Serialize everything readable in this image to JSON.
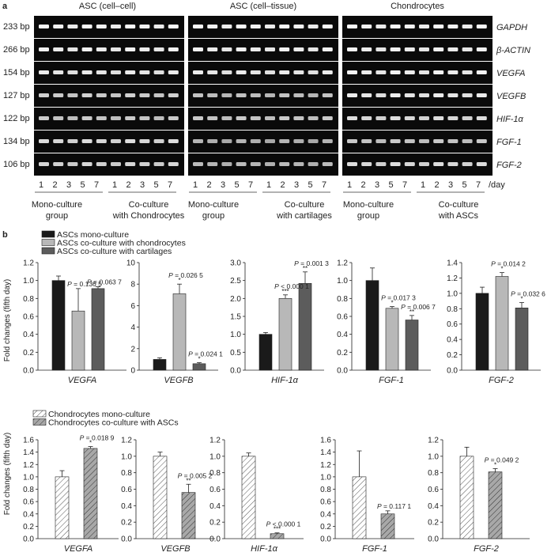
{
  "panel_a": {
    "label": "a",
    "block_titles": [
      "ASC (cell–cell)",
      "ASC (cell–tissue)",
      "Chondrocytes"
    ],
    "bands": [
      {
        "size": "233 bp",
        "gene": "GAPDH",
        "rowIntensity": [
          0.95,
          0.95,
          0.95
        ]
      },
      {
        "size": "266 bp",
        "gene": "β-ACTIN",
        "rowIntensity": [
          0.9,
          0.9,
          0.9
        ]
      },
      {
        "size": "154 bp",
        "gene": "VEGFA",
        "rowIntensity": [
          0.85,
          0.85,
          0.9
        ]
      },
      {
        "size": "127 bp",
        "gene": "VEGFB",
        "rowIntensity": [
          0.65,
          0.55,
          0.85
        ]
      },
      {
        "size": "122 bp",
        "gene": "HIF-1α",
        "rowIntensity": [
          0.6,
          0.6,
          0.75
        ]
      },
      {
        "size": "134 bp",
        "gene": "FGF-1",
        "rowIntensity": [
          0.75,
          0.45,
          0.6
        ]
      },
      {
        "size": "106 bp",
        "gene": "FGF-2",
        "rowIntensity": [
          0.7,
          0.5,
          0.75
        ]
      }
    ],
    "lanes": [
      "1",
      "2",
      "3",
      "5",
      "7"
    ],
    "day_label": "/day",
    "groups": [
      [
        "Mono-culture",
        "group"
      ],
      [
        "Co-culture",
        "with Chondrocytes"
      ],
      [
        "Mono-culture",
        "group"
      ],
      [
        "Co-culture",
        "with cartilages"
      ],
      [
        "Mono-culture",
        "group"
      ],
      [
        "Co-culture",
        "with ASCs"
      ]
    ]
  },
  "panel_b": {
    "label": "b",
    "legend": [
      {
        "label": "ASCs mono-culture",
        "color": "#1a1a1a"
      },
      {
        "label": "ASCs co-culture with chondrocytes",
        "color": "#b8b8b8"
      },
      {
        "label": "ASCs co-culture with cartilages",
        "color": "#5c5c5c"
      }
    ],
    "ylabel": "Fold changes (fifth day)"
  },
  "panel_c": {
    "legend": [
      {
        "label": "Chondrocytes mono-culture",
        "fill": "hatch-white"
      },
      {
        "label": "Chondrocytes co-culture with ASCs",
        "fill": "hatch-grey"
      }
    ],
    "ylabel": "Fold changes (fifth day)"
  },
  "chart_data": [
    {
      "type": "bar",
      "xlabel": "VEGFA",
      "ylim": [
        0,
        1.2
      ],
      "ticks": [
        "0.0",
        "0.2",
        "0.4",
        "0.6",
        "0.8",
        "1.0",
        "1.2"
      ],
      "values": [
        1.0,
        0.66,
        0.91
      ],
      "errors": [
        0.05,
        0.25,
        0.02
      ],
      "annotations": [
        {
          "bar": 1,
          "text": "P = 0.136 5",
          "star": ""
        },
        {
          "bar": 2,
          "text": "P = 0.063 7",
          "star": ""
        }
      ]
    },
    {
      "type": "bar",
      "xlabel": "VEGFB",
      "ylim": [
        0,
        10
      ],
      "ticks": [
        "0",
        "2",
        "4",
        "6",
        "8",
        "10"
      ],
      "values": [
        1.0,
        7.1,
        0.6
      ],
      "errors": [
        0.15,
        0.9,
        0.1
      ],
      "annotations": [
        {
          "bar": 1,
          "text": "P = 0.026 5",
          "star": "*"
        },
        {
          "bar": 2,
          "text": "P = 0.024 1",
          "star": "*"
        }
      ]
    },
    {
      "type": "bar",
      "xlabel": "HIF-1α",
      "ylim": [
        0,
        3.0
      ],
      "ticks": [
        "0.0",
        "0.5",
        "1.0",
        "1.5",
        "2.0",
        "2.5",
        "3.0"
      ],
      "values": [
        1.0,
        2.0,
        2.42
      ],
      "errors": [
        0.05,
        0.1,
        0.32
      ],
      "annotations": [
        {
          "bar": 1,
          "text": "P < 0.000 1",
          "star": "***"
        },
        {
          "bar": 2,
          "text": "P = 0.001 3",
          "star": "**"
        }
      ]
    },
    {
      "type": "bar",
      "xlabel": "FGF-1",
      "ylim": [
        0,
        1.2
      ],
      "ticks": [
        "0.0",
        "0.2",
        "0.4",
        "0.6",
        "0.8",
        "1.0",
        "1.2"
      ],
      "values": [
        1.0,
        0.69,
        0.56
      ],
      "errors": [
        0.14,
        0.02,
        0.05
      ],
      "annotations": [
        {
          "bar": 1,
          "text": "P = 0.017 3",
          "star": "*"
        },
        {
          "bar": 2,
          "text": "P = 0.006 7",
          "star": "**"
        }
      ]
    },
    {
      "type": "bar",
      "xlabel": "FGF-2",
      "ylim": [
        0,
        1.4
      ],
      "ticks": [
        "0.0",
        "0.2",
        "0.4",
        "0.6",
        "0.8",
        "1.0",
        "1.2",
        "1.4"
      ],
      "values": [
        1.0,
        1.22,
        0.81
      ],
      "errors": [
        0.08,
        0.05,
        0.07
      ],
      "annotations": [
        {
          "bar": 1,
          "text": "P = 0.014 2",
          "star": "*"
        },
        {
          "bar": 2,
          "text": "P = 0.032 6",
          "star": "*"
        }
      ]
    },
    {
      "type": "bar",
      "xlabel": "VEGFA",
      "ylim": [
        0,
        1.6
      ],
      "ticks": [
        "0.0",
        "0.2",
        "0.4",
        "0.6",
        "0.8",
        "1.0",
        "1.2",
        "1.4",
        "1.6"
      ],
      "values": [
        1.0,
        1.46
      ],
      "errors": [
        0.1,
        0.03
      ],
      "annotations": [
        {
          "bar": 1,
          "text": "P = 0.018 9",
          "star": "*"
        }
      ]
    },
    {
      "type": "bar",
      "xlabel": "VEGFB",
      "ylim": [
        0,
        1.2
      ],
      "ticks": [
        "0.0",
        "0.2",
        "0.4",
        "0.6",
        "0.8",
        "1.0",
        "1.2"
      ],
      "values": [
        1.0,
        0.56
      ],
      "errors": [
        0.05,
        0.1
      ],
      "annotations": [
        {
          "bar": 1,
          "text": "P = 0.005 2",
          "star": "**"
        }
      ]
    },
    {
      "type": "bar",
      "xlabel": "HIF-1α",
      "ylim": [
        0,
        1.2
      ],
      "ticks": [
        "0.0",
        "0.2",
        "0.4",
        "0.6",
        "0.8",
        "1.0",
        "1.2"
      ],
      "values": [
        1.0,
        0.06
      ],
      "errors": [
        0.04,
        0.01
      ],
      "annotations": [
        {
          "bar": 1,
          "text": "P < 0.000 1",
          "star": "***"
        }
      ]
    },
    {
      "type": "bar",
      "xlabel": "FGF-1",
      "ylim": [
        0,
        1.6
      ],
      "ticks": [
        "0.0",
        "0.2",
        "0.4",
        "0.6",
        "0.8",
        "1.0",
        "1.2",
        "1.4",
        "1.6"
      ],
      "values": [
        1.0,
        0.4
      ],
      "errors": [
        0.42,
        0.05
      ],
      "annotations": [
        {
          "bar": 1,
          "text": "P = 0.117 1",
          "star": ""
        }
      ]
    },
    {
      "type": "bar",
      "xlabel": "FGF-2",
      "ylim": [
        0,
        1.2
      ],
      "ticks": [
        "0.0",
        "0.2",
        "0.4",
        "0.6",
        "0.8",
        "1.0",
        "1.2"
      ],
      "values": [
        1.0,
        0.81
      ],
      "errors": [
        0.11,
        0.04
      ],
      "annotations": [
        {
          "bar": 1,
          "text": "P = 0.049 2",
          "star": "*"
        }
      ]
    }
  ]
}
